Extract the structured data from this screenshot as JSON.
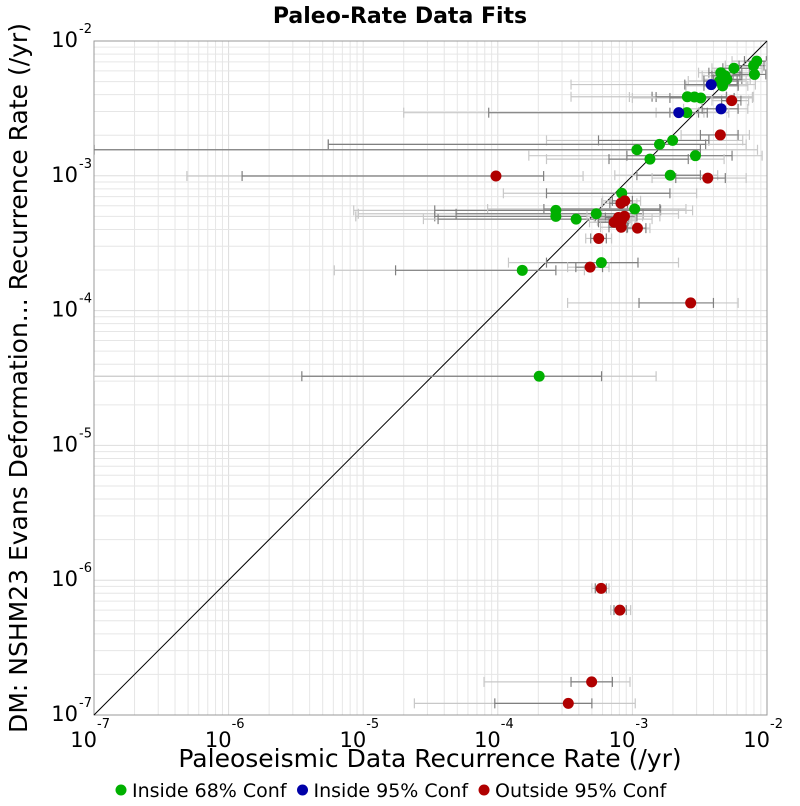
{
  "chart_data": {
    "type": "scatter",
    "title": "Paleo-Rate Data Fits",
    "xlabel": "Paleoseismic Data Recurrence Rate (/yr)",
    "ylabel": "DM: NSHM23 Evans Deformation... Recurrence Rate (/yr)",
    "xscale": "log",
    "yscale": "log",
    "xlim": [
      1e-07,
      0.01
    ],
    "ylim": [
      1e-07,
      0.01
    ],
    "x_tick_labels": [
      {
        "base": "10",
        "exp": "-7"
      },
      {
        "base": "10",
        "exp": "-6"
      },
      {
        "base": "10",
        "exp": "-5"
      },
      {
        "base": "10",
        "exp": "-4"
      },
      {
        "base": "10",
        "exp": "-3"
      },
      {
        "base": "10",
        "exp": "-2"
      }
    ],
    "y_tick_labels": [
      {
        "base": "10",
        "exp": "-7"
      },
      {
        "base": "10",
        "exp": "-6"
      },
      {
        "base": "10",
        "exp": "-5"
      },
      {
        "base": "10",
        "exp": "-4"
      },
      {
        "base": "10",
        "exp": "-3"
      },
      {
        "base": "10",
        "exp": "-2"
      }
    ],
    "grid": true,
    "reference_line": "y = x",
    "colors": {
      "inside68": "#00b000",
      "inside95": "#0000a8",
      "outside95": "#b00000",
      "errbar68": "#808080",
      "errbar95": "#c8c8c8",
      "grid": "#e6e6e6",
      "axis": "#999999"
    },
    "series": [
      {
        "name": "Inside 68% Conf",
        "key": "inside68",
        "points": [
          {
            "x": 0.00839,
            "y": 0.00709,
            "x68": [
              0.0068,
              0.0099
            ],
            "x95": [
              0.0055,
              0.0099
            ]
          },
          {
            "x": 0.00795,
            "y": 0.00657,
            "x68": [
              0.0062,
              0.0095
            ],
            "x95": [
              0.0049,
              0.0099
            ]
          },
          {
            "x": 0.00568,
            "y": 0.00628,
            "x68": [
              0.0047,
              0.0074
            ],
            "x95": [
              0.0039,
              0.0092
            ]
          },
          {
            "x": 0.00807,
            "y": 0.00565,
            "x68": [
              0.0056,
              0.0098
            ],
            "x95": [
              0.0041,
              0.0099
            ]
          },
          {
            "x": 0.00454,
            "y": 0.00582,
            "x68": [
              0.0037,
              0.0065
            ],
            "x95": [
              0.0031,
              0.0082
            ]
          },
          {
            "x": 0.00488,
            "y": 0.00552,
            "x68": [
              0.0039,
              0.0063
            ],
            "x95": [
              0.0033,
              0.0075
            ]
          },
          {
            "x": 0.00503,
            "y": 0.00519,
            "x68": [
              0.004,
              0.0065
            ],
            "x95": [
              0.0034,
              0.0075
            ]
          },
          {
            "x": 0.00445,
            "y": 0.00505,
            "x68": [
              0.0034,
              0.006
            ],
            "x95": [
              0.0026,
              0.007
            ]
          },
          {
            "x": 0.00468,
            "y": 0.00465,
            "x68": [
              0.0034,
              0.0061
            ],
            "x95": [
              0.0025,
              0.0072
            ]
          },
          {
            "x": 0.00256,
            "y": 0.00386,
            "x68": [
              0.0014,
              0.005
            ],
            "x95": [
              0.00035,
              0.0079
            ]
          },
          {
            "x": 0.00289,
            "y": 0.00384,
            "x68": [
              0.0015,
              0.005
            ],
            "x95": [
              0.00095,
              0.0078
            ]
          },
          {
            "x": 0.00322,
            "y": 0.00378,
            "x68": [
              0.0019,
              0.0057
            ],
            "x95": [
              0.001,
              0.0078
            ]
          },
          {
            "x": 0.00254,
            "y": 0.00294,
            "x68": [
              0.0019,
              0.0031
            ],
            "x95": [
              0.0015,
              0.0034
            ]
          },
          {
            "x": 0.00199,
            "y": 0.00183,
            "x68": [
              0.00056,
              0.0037
            ],
            "x95": [
              0.00023,
              0.0066
            ]
          },
          {
            "x": 0.00159,
            "y": 0.00171,
            "x68": [
              5.5e-06,
              0.0035
            ],
            "x95": [
              5.5e-06,
              0.007
            ]
          },
          {
            "x": 0.00108,
            "y": 0.00156,
            "x68": [
              1e-07,
              0.0032
            ],
            "x95": [
              1e-07,
              0.0085
            ]
          },
          {
            "x": 0.00294,
            "y": 0.00141,
            "x68": [
              0.00091,
              0.0055
            ],
            "x95": [
              0.00017,
              0.0092
            ]
          },
          {
            "x": 0.00135,
            "y": 0.00133,
            "x68": [
              0.00067,
              0.0026
            ],
            "x95": [
              0.00023,
              0.0048
            ]
          },
          {
            "x": 0.00191,
            "y": 0.00101,
            "x68": [
              0.00108,
              0.0032
            ],
            "x95": [
              0.00074,
              0.0043
            ]
          },
          {
            "x": 0.000833,
            "y": 0.000742,
            "x68": [
              0.00023,
              0.0019
            ],
            "x95": [
              0.00011,
              0.003
            ]
          },
          {
            "x": 0.00027,
            "y": 0.000554,
            "x68": [
              3.4e-05,
              0.00162
            ],
            "x95": [
              8.5e-06,
              0.0028
            ]
          },
          {
            "x": 0.00104,
            "y": 0.000567,
            "x68": [
              0.00022,
              0.0016
            ],
            "x95": [
              8.4e-05,
              0.0025
            ]
          },
          {
            "x": 0.000539,
            "y": 0.000523,
            "x68": [
              4.9e-05,
              0.0012
            ],
            "x95": [
              9.2e-06,
              0.0022
            ]
          },
          {
            "x": 0.00027,
            "y": 0.0005,
            "x68": [
              3.4e-05,
              0.00108
            ],
            "x95": [
              8.8e-06,
              0.0016
            ]
          },
          {
            "x": 0.000382,
            "y": 0.000477,
            "x68": [
              3.6e-05,
              0.00094
            ],
            "x95": [
              2.8e-05,
              0.0014
            ]
          },
          {
            "x": 0.000588,
            "y": 0.000227,
            "x68": [
              0.00023,
              0.0011
            ],
            "x95": [
              0.00012,
              0.0022
            ]
          },
          {
            "x": 0.000152,
            "y": 0.000199,
            "x68": [
              1.74e-05,
              0.00027
            ],
            "x95": [
              6.1e-06,
              0.00044
            ]
          },
          {
            "x": 0.000203,
            "y": 3.26e-05,
            "x68": [
              3.5e-06,
              0.00059
            ],
            "x95": [
              1e-07,
              0.0015
            ]
          }
        ]
      },
      {
        "name": "Inside 95% Conf",
        "key": "inside95",
        "points": [
          {
            "x": 0.00385,
            "y": 0.00475,
            "x68": [
              0.00245,
              0.0061
            ],
            "x95": [
              0.00035,
              0.0082
            ]
          },
          {
            "x": 0.00456,
            "y": 0.00314,
            "x68": [
              0.0033,
              0.0061
            ],
            "x95": [
              0.0024,
              0.0072
            ]
          },
          {
            "x": 0.00221,
            "y": 0.00294,
            "x68": [
              8.56e-05,
              0.0036
            ],
            "x95": [
              2e-05,
              0.0052
            ]
          }
        ]
      },
      {
        "name": "Outside 95% Conf",
        "key": "outside95",
        "points": [
          {
            "x": 0.00547,
            "y": 0.00361,
            "x68": [
              0.0046,
              0.0064
            ],
            "x95": [
              0.0039,
              0.0073
            ]
          },
          {
            "x": 0.0045,
            "y": 0.00201,
            "x68": [
              0.0032,
              0.0061
            ],
            "x95": [
              0.0023,
              0.0074
            ]
          },
          {
            "x": 9.69e-05,
            "y": 0.000996,
            "x68": [
              1.26e-06,
              0.000219
            ],
            "x95": [
              4.9e-07,
              0.00043
            ]
          },
          {
            "x": 0.00363,
            "y": 0.000962,
            "x68": [
              0.0021,
              0.0049
            ],
            "x95": [
              0.0014,
              0.007
            ]
          },
          {
            "x": 0.000822,
            "y": 0.000626,
            "x68": [
              0.00068,
              0.00092
            ],
            "x95": [
              0.00059,
              0.00108
            ]
          },
          {
            "x": 0.000878,
            "y": 0.000652,
            "x68": [
              0.00071,
              0.001
            ],
            "x95": [
              0.0006,
              0.00115
            ]
          },
          {
            "x": 0.000873,
            "y": 0.000501,
            "x68": [
              0.00053,
              0.00108
            ],
            "x95": [
              0.00046,
              0.00119
            ]
          },
          {
            "x": 0.000788,
            "y": 0.00049,
            "x68": [
              0.00063,
              0.00094
            ],
            "x95": [
              0.00052,
              0.00105
            ]
          },
          {
            "x": 0.00083,
            "y": 0.000464,
            "x68": [
              0.00067,
              0.00093
            ],
            "x95": [
              0.00055,
              0.00106
            ]
          },
          {
            "x": 0.000732,
            "y": 0.000452,
            "x68": [
              0.00056,
              0.00088
            ],
            "x95": [
              0.00048,
              0.00098
            ]
          },
          {
            "x": 0.000826,
            "y": 0.000415,
            "x68": [
              0.00067,
              0.00092
            ],
            "x95": [
              0.00058,
              0.00104
            ]
          },
          {
            "x": 0.00109,
            "y": 0.000409,
            "x68": [
              0.00091,
              0.00126
            ],
            "x95": [
              0.00081,
              0.00135
            ]
          },
          {
            "x": 0.000562,
            "y": 0.000343,
            "x68": [
              0.00049,
              0.00064
            ],
            "x95": [
              0.00045,
              0.0007
            ]
          },
          {
            "x": 0.000485,
            "y": 0.00021,
            "x68": [
              0.00038,
              0.0006
            ],
            "x95": [
              0.00033,
              0.00067
            ]
          },
          {
            "x": 0.00271,
            "y": 0.000114,
            "x68": [
              0.00112,
              0.004
            ],
            "x95": [
              0.00033,
              0.0061
            ]
          },
          {
            "x": 0.000586,
            "y": 8.7e-07,
            "x68": [
              0.00053,
              0.00064
            ],
            "x95": [
              0.0005,
              0.00067
            ]
          },
          {
            "x": 0.000807,
            "y": 6e-07,
            "x68": [
              0.00073,
              0.0009
            ],
            "x95": [
              0.00069,
              0.00097
            ]
          },
          {
            "x": 0.000498,
            "y": 1.76e-07,
            "x68": [
              0.00035,
              0.00071
            ],
            "x95": [
              7.9e-05,
              0.00096
            ]
          },
          {
            "x": 0.000334,
            "y": 1.22e-07,
            "x68": [
              9.5e-05,
              0.0005
            ],
            "x95": [
              2.4e-05,
              0.00105
            ]
          }
        ]
      }
    ],
    "legend": {
      "placement": "bottom",
      "entries": [
        {
          "key": "inside68",
          "label": "Inside 68% Conf"
        },
        {
          "key": "inside95",
          "label": "Inside 95% Conf"
        },
        {
          "key": "outside95",
          "label": "Outside 95% Conf"
        }
      ]
    }
  }
}
